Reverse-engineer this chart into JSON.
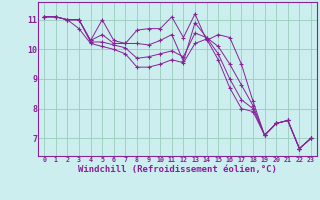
{
  "background_color": "#cceeee",
  "grid_color": "#99ccbb",
  "line_color": "#882299",
  "xlabel": "Windchill (Refroidissement éolien,°C)",
  "xlabel_fontsize": 6.5,
  "ylim": [
    6.4,
    11.6
  ],
  "xlim": [
    -0.5,
    23.5
  ],
  "series": [
    [
      11.1,
      11.1,
      11.0,
      11.0,
      10.3,
      11.0,
      10.3,
      10.2,
      10.65,
      10.7,
      10.7,
      11.1,
      10.4,
      11.2,
      10.3,
      10.5,
      10.4,
      9.5,
      8.25,
      7.1,
      7.5,
      7.6,
      6.65,
      7.0
    ],
    [
      11.1,
      11.1,
      11.0,
      11.0,
      10.3,
      10.5,
      10.2,
      10.2,
      10.2,
      10.15,
      10.3,
      10.5,
      9.6,
      10.9,
      10.4,
      10.1,
      9.5,
      8.8,
      8.1,
      7.1,
      7.5,
      7.6,
      6.65,
      7.0
    ],
    [
      11.1,
      11.1,
      11.0,
      11.0,
      10.25,
      10.25,
      10.15,
      10.05,
      9.7,
      9.75,
      9.85,
      9.95,
      9.75,
      10.55,
      10.4,
      9.85,
      9.0,
      8.3,
      8.0,
      7.1,
      7.5,
      7.6,
      6.65,
      7.0
    ],
    [
      11.1,
      11.1,
      11.0,
      10.7,
      10.2,
      10.1,
      10.0,
      9.85,
      9.4,
      9.4,
      9.5,
      9.65,
      9.55,
      10.2,
      10.35,
      9.65,
      8.7,
      8.0,
      7.9,
      7.1,
      7.5,
      7.6,
      6.65,
      7.0
    ]
  ]
}
